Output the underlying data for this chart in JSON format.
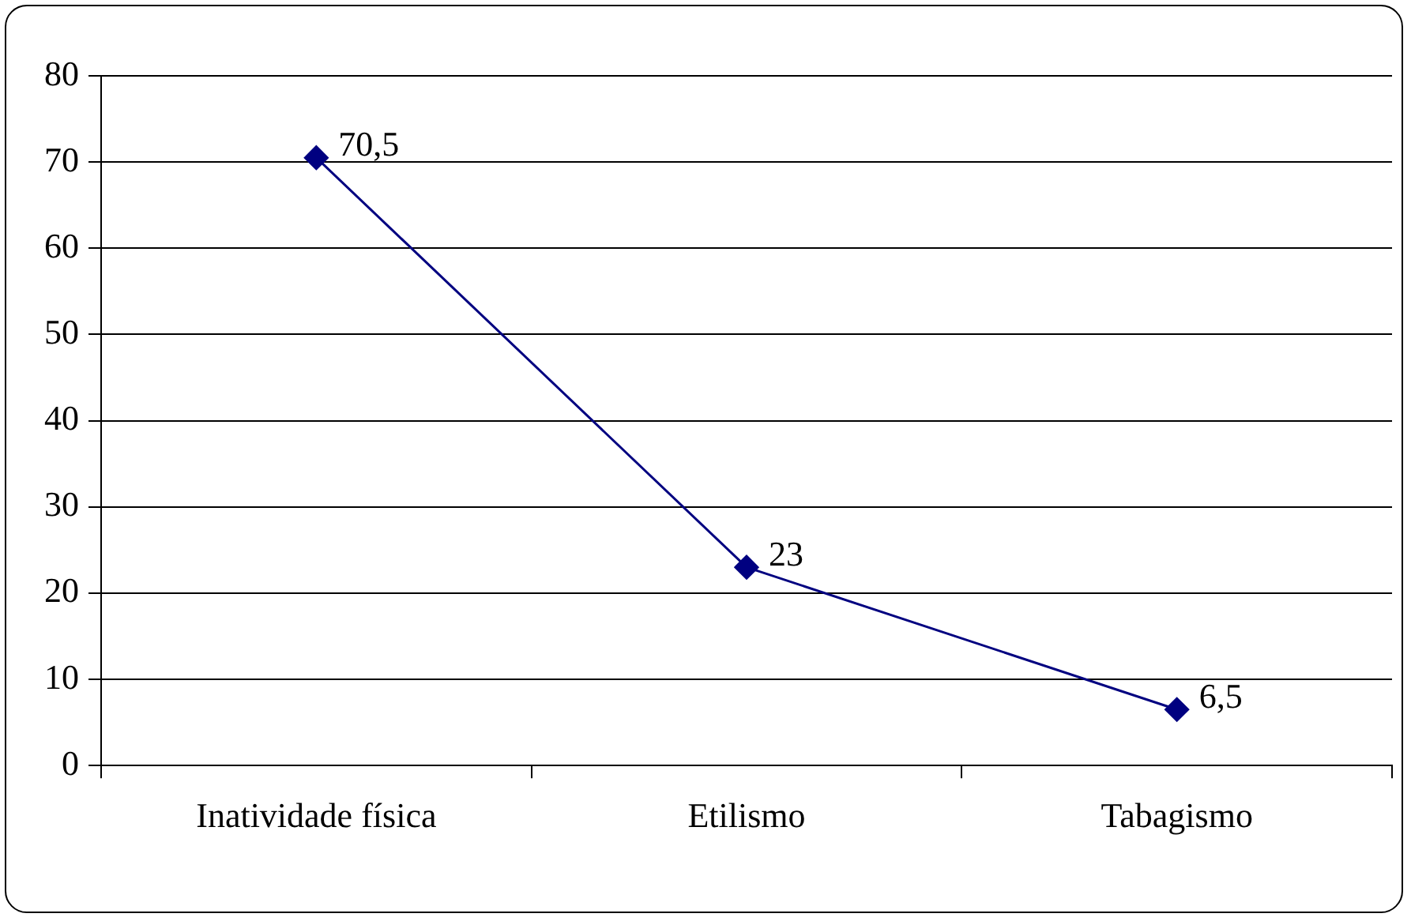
{
  "chart_data": {
    "type": "line",
    "categories": [
      "Inatividade física",
      "Etilismo",
      "Tabagismo"
    ],
    "values": [
      70.5,
      23,
      6.5
    ],
    "value_labels": [
      "70,5",
      "23",
      "6,5"
    ],
    "color": "#000080",
    "marker": "diamond",
    "line_style": "solid",
    "ylim": [
      0,
      80
    ],
    "yticks": [
      0,
      10,
      20,
      30,
      40,
      50,
      60,
      70,
      80
    ],
    "grid": "y",
    "legend": false
  }
}
